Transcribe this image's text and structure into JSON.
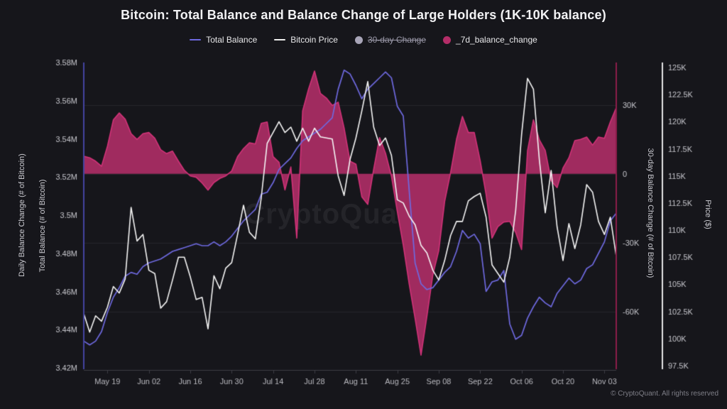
{
  "title": "Bitcoin: Total Balance and Balance Change of Large Holders (1K-10K balance)",
  "watermark": "CryptoQuant",
  "copyright": "© CryptoQuant. All rights reserved",
  "colors": {
    "background": "#16161b",
    "grid": "#26262c",
    "axis_line": "#3e3e46",
    "tick_text": "#c6c6cc",
    "x_tick_text": "#b9b9bf",
    "left_spine": "#4444a2",
    "right_spine": "#8c1d4b",
    "price_spine": "#e6e6e8",
    "total_balance": "#6e69df",
    "bitcoin_price": "#f5f5f5",
    "change_fill": "#a02b5f",
    "change_stroke": "#d23379",
    "disabled_legend": "#a8a5b8"
  },
  "legend": [
    {
      "label": "Total Balance",
      "marker": "line",
      "color": "#6e69df",
      "disabled": false
    },
    {
      "label": "Bitcoin Price",
      "marker": "line",
      "color": "#eeeeee",
      "disabled": false
    },
    {
      "label": "30-day Change",
      "marker": "circle",
      "color": "#a8a5b8",
      "disabled": true
    },
    {
      "label": "_7d_balance_change",
      "marker": "circle",
      "color": "#b42d68",
      "disabled": false
    }
  ],
  "axes": {
    "left_outer_title": "Daily Balance Change (# of Bitcoin)",
    "left_title": "Total Balance (# of Bitcoin)",
    "right_change_title": "30-day Balance Change (# of Bitcoin)",
    "right_price_title": "Price ($)",
    "left_ticks": [
      {
        "label": "3.58M",
        "v": 3.58
      },
      {
        "label": "3.56M",
        "v": 3.56
      },
      {
        "label": "3.54M",
        "v": 3.54
      },
      {
        "label": "3.52M",
        "v": 3.52
      },
      {
        "label": "3.5M",
        "v": 3.5
      },
      {
        "label": "3.48M",
        "v": 3.48
      },
      {
        "label": "3.46M",
        "v": 3.46
      },
      {
        "label": "3.44M",
        "v": 3.44
      },
      {
        "label": "3.42M",
        "v": 3.42
      }
    ],
    "change_ticks": [
      {
        "label": "30K",
        "v": 30
      },
      {
        "label": "0",
        "v": 0
      },
      {
        "label": "-30K",
        "v": -30
      },
      {
        "label": "-60K",
        "v": -60
      }
    ],
    "price_ticks": [
      {
        "label": "125K",
        "v": 125
      },
      {
        "label": "122.5K",
        "v": 122.5
      },
      {
        "label": "120K",
        "v": 120
      },
      {
        "label": "117.5K",
        "v": 117.5
      },
      {
        "label": "115K",
        "v": 115
      },
      {
        "label": "112.5K",
        "v": 112.5
      },
      {
        "label": "110K",
        "v": 110
      },
      {
        "label": "107.5K",
        "v": 107.5
      },
      {
        "label": "105K",
        "v": 105
      },
      {
        "label": "102.5K",
        "v": 102.5
      },
      {
        "label": "100K",
        "v": 100
      },
      {
        "label": "97.5K",
        "v": 97.5
      }
    ],
    "x_ticks": [
      {
        "label": "May 19",
        "d": 8
      },
      {
        "label": "Jun 02",
        "d": 22
      },
      {
        "label": "Jun 16",
        "d": 36
      },
      {
        "label": "Jun 30",
        "d": 50
      },
      {
        "label": "Jul 14",
        "d": 64
      },
      {
        "label": "Jul 28",
        "d": 78
      },
      {
        "label": "Aug 11",
        "d": 92
      },
      {
        "label": "Aug 25",
        "d": 106
      },
      {
        "label": "Sep 08",
        "d": 120
      },
      {
        "label": "Sep 22",
        "d": 134
      },
      {
        "label": "Oct 06",
        "d": 148
      },
      {
        "label": "Oct 20",
        "d": 162
      },
      {
        "label": "Nov 03",
        "d": 176
      }
    ]
  },
  "chart_data": {
    "type": "combo",
    "x_start_label": "May 11",
    "x_end_label": "Nov 05",
    "x_step_days": 2,
    "x_total_days": 180,
    "axis_ranges": {
      "balance_M": [
        3.42,
        3.58
      ],
      "price_K": [
        97.5,
        125
      ],
      "change_K": [
        -84.5,
        48.5
      ]
    },
    "grid_on": true,
    "legend_position": "top",
    "series": [
      {
        "name": "Total Balance",
        "kind": "line",
        "axis": "balance_M",
        "unit": "M BTC",
        "color": "#6e69df",
        "values": [
          3.434,
          3.432,
          3.434,
          3.439,
          3.449,
          3.457,
          3.462,
          3.468,
          3.47,
          3.469,
          3.473,
          3.475,
          3.476,
          3.477,
          3.479,
          3.481,
          3.482,
          3.483,
          3.484,
          3.485,
          3.484,
          3.484,
          3.486,
          3.484,
          3.486,
          3.489,
          3.493,
          3.497,
          3.5,
          3.503,
          3.511,
          3.512,
          3.517,
          3.524,
          3.527,
          3.53,
          3.535,
          3.539,
          3.541,
          3.543,
          3.545,
          3.548,
          3.551,
          3.566,
          3.576,
          3.574,
          3.568,
          3.561,
          3.566,
          3.569,
          3.572,
          3.575,
          3.572,
          3.557,
          3.552,
          3.513,
          3.475,
          3.464,
          3.461,
          3.462,
          3.466,
          3.47,
          3.473,
          3.481,
          3.492,
          3.488,
          3.49,
          3.485,
          3.46,
          3.465,
          3.466,
          3.471,
          3.443,
          3.435,
          3.437,
          3.446,
          3.452,
          3.457,
          3.454,
          3.452,
          3.459,
          3.463,
          3.467,
          3.464,
          3.466,
          3.472,
          3.474,
          3.48,
          3.486,
          3.497,
          3.501
        ]
      },
      {
        "name": "Bitcoin Price",
        "kind": "line",
        "axis": "price_K",
        "unit": "K USD",
        "color": "#f5f5f5",
        "values": [
          102.3,
          100.6,
          102.1,
          101.6,
          102.9,
          104.8,
          104.2,
          105.5,
          112.1,
          109.0,
          109.6,
          106.3,
          106.0,
          102.8,
          103.4,
          105.4,
          107.5,
          107.5,
          105.7,
          103.6,
          103.8,
          100.9,
          105.8,
          104.6,
          106.5,
          107.0,
          109.6,
          112.3,
          109.8,
          109.2,
          113.0,
          118.0,
          119.0,
          120.0,
          119.0,
          119.5,
          118.2,
          119.4,
          118.2,
          119.4,
          118.6,
          118.5,
          118.4,
          115.0,
          113.2,
          116.5,
          118.5,
          121.0,
          123.7,
          119.5,
          117.8,
          118.5,
          116.9,
          112.8,
          112.5,
          111.3,
          110.5,
          108.6,
          107.9,
          106.3,
          105.4,
          107.2,
          109.5,
          110.8,
          110.8,
          112.7,
          113.1,
          113.4,
          111.2,
          106.8,
          106.0,
          105.2,
          107.5,
          111.8,
          118.8,
          124.0,
          123.0,
          116.5,
          111.6,
          115.5,
          110.3,
          107.2,
          110.6,
          108.3,
          110.5,
          114.2,
          113.5,
          110.8,
          109.6,
          111.2,
          107.6
        ]
      },
      {
        "name": "_7d_balance_change",
        "kind": "area",
        "axis": "change_K",
        "unit": "K BTC",
        "color": "#a02b5f",
        "stroke": "#d23379",
        "baseline": 0,
        "values": [
          7.7,
          7.0,
          5.5,
          3.3,
          12.0,
          23.5,
          26.5,
          23.8,
          17.5,
          15.0,
          17.5,
          18.0,
          15.5,
          10.5,
          8.8,
          9.9,
          5.5,
          1.5,
          -0.9,
          -1.5,
          -4.0,
          -7.1,
          -3.8,
          -2.0,
          -0.9,
          1.2,
          7.5,
          11.0,
          13.5,
          13.0,
          22.0,
          22.6,
          7.5,
          5.0,
          -7.0,
          3.0,
          -28.0,
          27.5,
          37.0,
          44.8,
          35.0,
          33.0,
          29.8,
          31.2,
          20.0,
          5.5,
          4.2,
          -10.0,
          -13.3,
          2.0,
          15.8,
          9.0,
          -1.0,
          -16.5,
          -31.0,
          -48.0,
          -63.0,
          -79.0,
          -62.0,
          -44.0,
          -33.5,
          -12.0,
          0.5,
          15.0,
          25.0,
          18.0,
          18.0,
          5.8,
          -9.0,
          -28.0,
          -23.0,
          -21.0,
          -20.7,
          -25.5,
          -33.0,
          10.0,
          23.5,
          14.8,
          10.2,
          -3.0,
          -6.0,
          2.5,
          7.0,
          14.5,
          15.0,
          16.0,
          12.5,
          16.0,
          15.5,
          22.6,
          28.8
        ]
      }
    ]
  }
}
